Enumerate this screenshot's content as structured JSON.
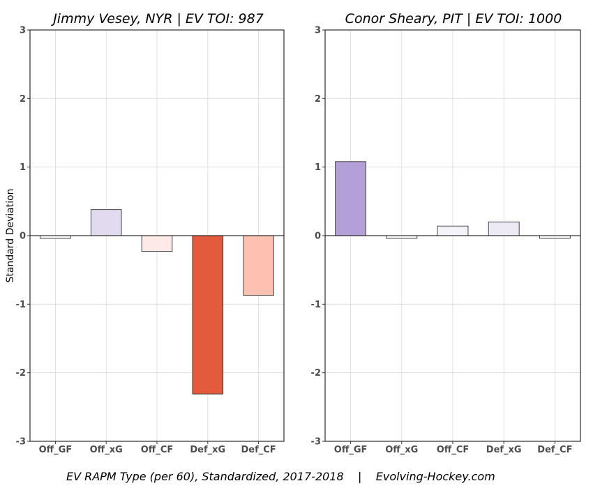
{
  "chart_data": [
    {
      "type": "bar",
      "title": "Jimmy Vesey, NYR  |  EV TOI: 987",
      "xlabel": "",
      "ylabel": "Standard Deviation",
      "categories": [
        "Off_GF",
        "Off_xG",
        "Off_CF",
        "Def_xG",
        "Def_CF"
      ],
      "values": [
        -0.04,
        0.38,
        -0.23,
        -2.31,
        -0.87
      ],
      "colors": [
        "#ffffff",
        "#e2dbf0",
        "#fdeae6",
        "#e45a3d",
        "#fdc1b2"
      ],
      "ylim": [
        -3,
        3
      ],
      "yticks": [
        "-3",
        "-2",
        "-1",
        "0",
        "1",
        "2",
        "3"
      ],
      "grid": true
    },
    {
      "type": "bar",
      "title": "Conor Sheary, PIT  |  EV TOI: 1000",
      "xlabel": "",
      "ylabel": "",
      "categories": [
        "Off_GF",
        "Off_xG",
        "Off_CF",
        "Def_xG",
        "Def_CF"
      ],
      "values": [
        1.08,
        -0.04,
        0.14,
        0.2,
        -0.04
      ],
      "colors": [
        "#b4a0d8",
        "#ffffff",
        "#f5f3fa",
        "#edeaf5",
        "#ffffff"
      ],
      "ylim": [
        -3,
        3
      ],
      "yticks": [
        "-3",
        "-2",
        "-1",
        "0",
        "1",
        "2",
        "3"
      ],
      "grid": true
    }
  ],
  "caption": "EV RAPM Type (per 60), Standardized, 2017-2018    |    Evolving-Hockey.com"
}
